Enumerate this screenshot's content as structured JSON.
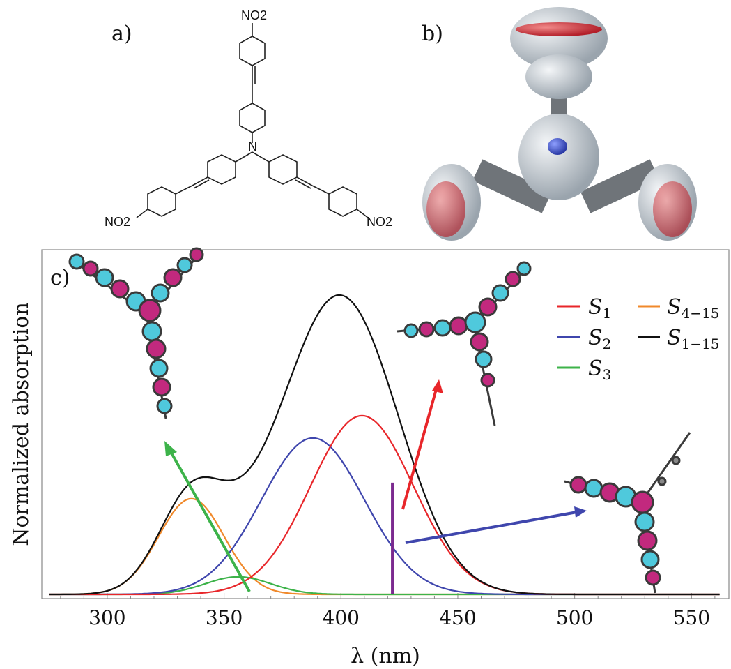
{
  "panels": {
    "a_label": "a)",
    "b_label": "b)",
    "c_label": "c)"
  },
  "structure_a": {
    "groups": [
      "NO2",
      "NO2",
      "NO2"
    ],
    "center_atom": "N"
  },
  "colors": {
    "S1": "#e8262a",
    "S2": "#3f46ad",
    "S3": "#3db34a",
    "S4_15": "#f0892b",
    "S1_15": "#111111",
    "stick": "#7b2a8f",
    "orbital_pos": "#4fc9dc",
    "orbital_neg": "#c2297e"
  },
  "chart_data": {
    "type": "line",
    "xlabel": "λ (nm)",
    "ylabel": "Normalized absorption",
    "xlim": [
      272,
      566
    ],
    "ylim": [
      0,
      1.08
    ],
    "xticks": [
      300,
      350,
      400,
      450,
      500,
      550
    ],
    "grid": false,
    "legend_position": "top-right",
    "series": [
      {
        "key": "S1",
        "name": "S",
        "sub": "1",
        "center": 409,
        "width": 22,
        "amplitude": 0.56
      },
      {
        "key": "S2",
        "name": "S",
        "sub": "2",
        "center": 388,
        "width": 22,
        "amplitude": 0.49
      },
      {
        "key": "S3",
        "name": "S",
        "sub": "3",
        "center": 356,
        "width": 14,
        "amplitude": 0.055
      },
      {
        "key": "S4_15",
        "name": "S",
        "sub": "4−15",
        "center": 336,
        "width": 14,
        "amplitude": 0.3
      },
      {
        "key": "S1_15",
        "name": "S",
        "sub": "1−15",
        "composite": true
      }
    ],
    "stick": {
      "x": 422,
      "height": 0.35
    }
  }
}
